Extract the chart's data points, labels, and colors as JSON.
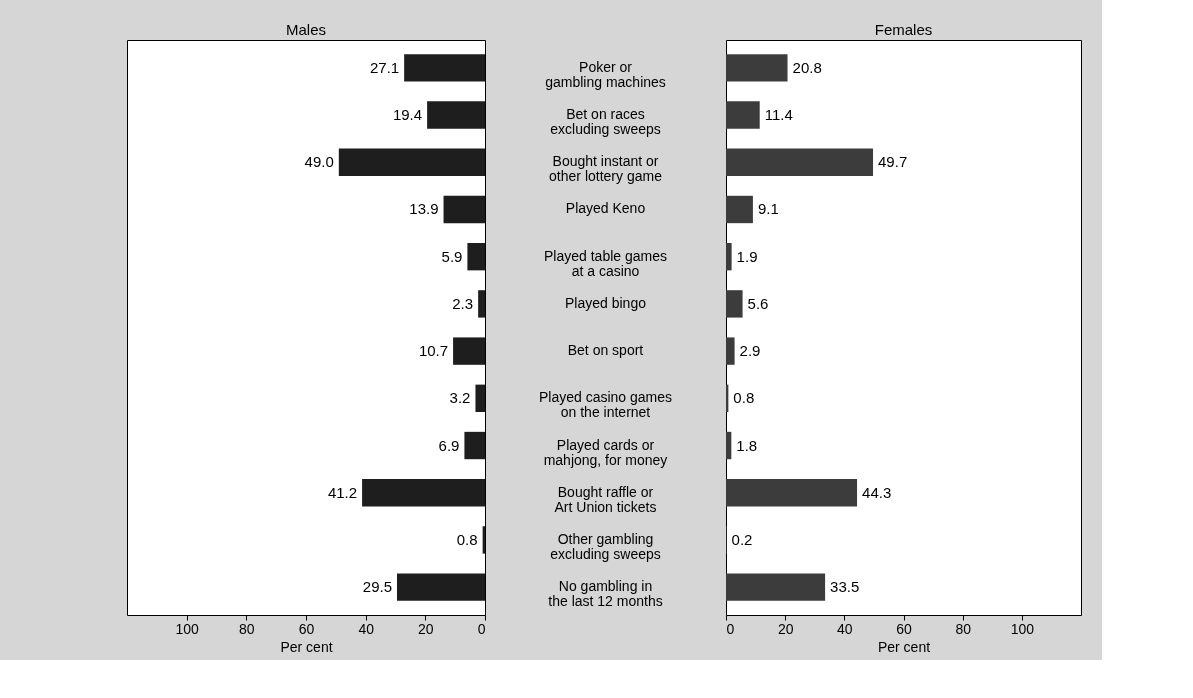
{
  "chart_data": [
    {
      "type": "bar",
      "orientation": "horizontal",
      "title": "Males",
      "xlabel": "Per cent",
      "categories": [
        "Poker or\ngambling machines",
        "Bet on races\nexcluding sweeps",
        "Bought instant or\nother lottery game",
        "Played Keno",
        "Played table games\nat a casino",
        "Played bingo",
        "Bet on sport",
        "Played casino games\non the internet",
        "Played cards or\nmahjong, for money",
        "Bought raffle or\nArt Union tickets",
        "Other gambling\nexcluding sweeps",
        "No gambling in\nthe last 12 months"
      ],
      "values": [
        27.1,
        19.4,
        49.0,
        13.9,
        5.9,
        2.3,
        10.7,
        3.2,
        6.9,
        41.2,
        0.8,
        29.5
      ],
      "value_labels": [
        "27.1",
        "19.4",
        "49.0",
        "13.9",
        "5.9",
        "2.3",
        "10.7",
        "3.2",
        "6.9",
        "41.2",
        "0.8",
        "29.5"
      ],
      "color": "#1e1e1e",
      "xlim": [
        120,
        0
      ],
      "xticks": [
        0,
        20,
        40,
        60,
        80,
        100
      ]
    },
    {
      "type": "bar",
      "orientation": "horizontal",
      "title": "Females",
      "xlabel": "Per cent",
      "categories": [
        null,
        null,
        null,
        null,
        null,
        null,
        null,
        null,
        null,
        null,
        null,
        null
      ],
      "values": [
        20.8,
        11.4,
        49.7,
        9.1,
        1.9,
        5.6,
        2.9,
        0.8,
        1.8,
        44.3,
        0.2,
        33.5
      ],
      "value_labels": [
        "20.8",
        "11.4",
        "49.7",
        "9.1",
        "1.9",
        "5.6",
        "2.9",
        "0.8",
        "1.8",
        "44.3",
        "0.2",
        "33.5"
      ],
      "color": "#3c3c3c",
      "xlim": [
        0,
        120
      ],
      "xticks": [
        0,
        20,
        40,
        60,
        80,
        100
      ],
      "tick_labels": "x"
    }
  ]
}
